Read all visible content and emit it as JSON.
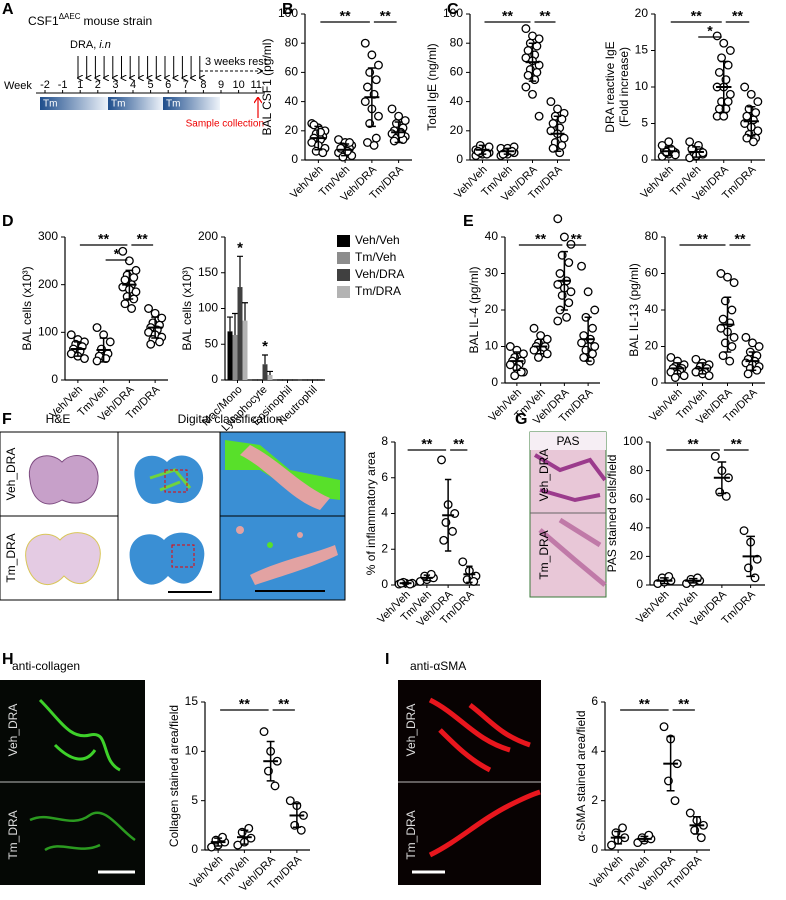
{
  "panel_letters": [
    "A",
    "B",
    "C",
    "D",
    "E",
    "F",
    "G",
    "H",
    "I"
  ],
  "timeline": {
    "title": "CSF1",
    "title_sup": "ΔAEC",
    "title_rest": "mouse strain",
    "dra": "DRA,",
    "dra_route": "i.n",
    "rest": "3 weeks rest",
    "week_label": "Week",
    "weeks": [
      -2,
      -1,
      1,
      2,
      3,
      4,
      5,
      6,
      7,
      8,
      9,
      10,
      11
    ],
    "treatment": [
      "Tm",
      "Tm",
      "Tm"
    ],
    "sample": "Sample collection"
  },
  "images": {
    "F": {
      "titles": [
        "H&E",
        "Digital classification"
      ],
      "rows": [
        "Veh_DRA",
        "Tm_DRA"
      ]
    },
    "G": {
      "title": "PAS",
      "rows": [
        "Veh_DRA",
        "Tm_DRA"
      ]
    },
    "H": {
      "title": "anti-collagen",
      "rows": [
        "Veh_DRA",
        "Tm_DRA"
      ]
    },
    "I": {
      "title": "anti-αSMA",
      "rows": [
        "Veh_DRA",
        "Tm_DRA"
      ]
    }
  },
  "chart_data": [
    {
      "type": "dotplot",
      "ylabel": "BAL CSF1 (pg/ml)",
      "categories": [
        "Veh/Veh",
        "Tm/Veh",
        "Veh/DRA",
        "Tm/DRA"
      ],
      "points": [
        [
          25,
          22,
          20,
          18,
          16,
          15,
          14,
          12,
          10,
          8,
          6,
          5,
          24,
          19
        ],
        [
          14,
          12,
          10,
          9,
          8,
          7,
          6,
          5,
          4,
          3,
          2,
          12,
          8,
          6
        ],
        [
          80,
          72,
          65,
          60,
          55,
          50,
          45,
          40,
          35,
          30,
          25,
          15,
          12,
          10
        ],
        [
          35,
          30,
          27,
          25,
          22,
          20,
          19,
          18,
          17,
          16,
          15,
          14,
          13,
          18
        ]
      ],
      "means": [
        15,
        7,
        43,
        19
      ],
      "sd": [
        8,
        4,
        20,
        7
      ],
      "ylim": [
        0,
        100
      ],
      "yticks": [
        0,
        20,
        40,
        60,
        80,
        100
      ],
      "significance": [
        {
          "groups": [
            "Veh/Veh",
            "Veh/DRA"
          ],
          "label": "**"
        },
        {
          "groups": [
            "Veh/DRA",
            "Tm/DRA"
          ],
          "label": "**"
        }
      ]
    },
    {
      "type": "dotplot",
      "ylabel": "Total IgE (ng/ml)",
      "categories": [
        "Veh/Veh",
        "Tm/Veh",
        "Veh/DRA",
        "Tm/DRA"
      ],
      "points": [
        [
          3,
          4,
          5,
          5,
          6,
          6,
          7,
          7,
          8,
          9,
          10,
          4,
          6
        ],
        [
          3,
          4,
          5,
          6,
          6,
          7,
          7,
          8,
          8,
          9,
          5,
          6,
          4
        ],
        [
          90,
          85,
          83,
          80,
          78,
          75,
          72,
          70,
          68,
          65,
          62,
          60,
          58,
          55,
          50,
          45,
          30
        ],
        [
          40,
          35,
          32,
          30,
          28,
          25,
          22,
          20,
          18,
          15,
          12,
          10,
          8,
          5
        ]
      ],
      "means": [
        7,
        6,
        67,
        18
      ],
      "sd": [
        3,
        2,
        13,
        12
      ],
      "ylim": [
        0,
        100
      ],
      "yticks": [
        0,
        20,
        40,
        60,
        80,
        100
      ],
      "significance": [
        {
          "groups": [
            "Veh/Veh",
            "Veh/DRA"
          ],
          "label": "**"
        },
        {
          "groups": [
            "Veh/DRA",
            "Tm/DRA"
          ],
          "label": "**"
        }
      ]
    },
    {
      "type": "dotplot",
      "ylabel": [
        "DRA reactive IgE",
        "(Fold increase)"
      ],
      "categories": [
        "Veh/Veh",
        "Tm/Veh",
        "Veh/DRA",
        "Tm/DRA"
      ],
      "points": [
        [
          0.5,
          0.8,
          1,
          1,
          1.2,
          1.3,
          1.5,
          2,
          2.5,
          0.7,
          1.1
        ],
        [
          0.3,
          0.5,
          0.8,
          1,
          1.2,
          1.5,
          2,
          2.5,
          0.6,
          1
        ],
        [
          17,
          16,
          15,
          14,
          13,
          12,
          11,
          10,
          10,
          9,
          8,
          8,
          7,
          7,
          6,
          6
        ],
        [
          10,
          9,
          8,
          7,
          6.5,
          6,
          5.5,
          5,
          4.5,
          4,
          3.5,
          3,
          3,
          2.5
        ]
      ],
      "means": [
        1.2,
        1.1,
        10,
        5.3
      ],
      "sd": [
        0.6,
        0.7,
        3.5,
        2
      ],
      "ylim": [
        0,
        20
      ],
      "yticks": [
        0,
        5,
        10,
        15,
        20
      ],
      "significance": [
        {
          "groups": [
            "Veh/Veh",
            "Veh/DRA"
          ],
          "label": "**"
        },
        {
          "groups": [
            "Tm/Veh",
            "Veh/DRA"
          ],
          "label": "*"
        },
        {
          "groups": [
            "Veh/DRA",
            "Tm/DRA"
          ],
          "label": "**"
        }
      ]
    },
    {
      "type": "dotplot",
      "ylabel": "BAL cells (x10³)",
      "categories": [
        "Veh/Veh",
        "Tm/Veh",
        "Veh/DRA",
        "Tm/DRA"
      ],
      "points": [
        [
          95,
          85,
          80,
          75,
          70,
          65,
          60,
          55,
          50,
          45
        ],
        [
          110,
          95,
          80,
          65,
          55,
          50,
          45,
          40
        ],
        [
          270,
          250,
          230,
          220,
          215,
          210,
          200,
          195,
          190,
          185,
          175,
          170,
          160,
          150
        ],
        [
          150,
          140,
          130,
          120,
          115,
          110,
          105,
          100,
          95,
          90,
          85,
          80,
          75
        ]
      ],
      "means": [
        65,
        63,
        200,
        110
      ],
      "sd": [
        15,
        25,
        30,
        22
      ],
      "ylim": [
        0,
        300
      ],
      "yticks": [
        0,
        100,
        200,
        300
      ],
      "significance": [
        {
          "groups": [
            "Veh/Veh",
            "Veh/DRA"
          ],
          "label": "**"
        },
        {
          "groups": [
            "Tm/Veh",
            "Veh/DRA"
          ],
          "label": "*"
        },
        {
          "groups": [
            "Veh/DRA",
            "Tm/DRA"
          ],
          "label": "**"
        }
      ]
    },
    {
      "type": "bar",
      "ylabel": "BAL cells (x10³)",
      "categories": [
        "Mac/Mono",
        "Lymphocyte",
        "Eosinophil",
        "Neutrophil"
      ],
      "series": [
        {
          "name": "Veh/Veh",
          "color": "#000000",
          "values": [
            68,
            0,
            0,
            0
          ],
          "errors": [
            20,
            0,
            0,
            0
          ]
        },
        {
          "name": "Tm/Veh",
          "color": "#8c8c8c",
          "values": [
            63,
            0,
            0,
            0
          ],
          "errors": [
            30,
            0,
            0,
            0
          ]
        },
        {
          "name": "Veh/DRA",
          "color": "#404040",
          "values": [
            130,
            22,
            0,
            0
          ],
          "errors": [
            43,
            13,
            0,
            0
          ]
        },
        {
          "name": "Tm/DRA",
          "color": "#b3b3b3",
          "values": [
            83,
            7,
            0,
            0
          ],
          "errors": [
            25,
            5,
            0,
            0
          ]
        }
      ],
      "stars": [
        {
          "category": "Mac/Mono",
          "series": "Veh/DRA",
          "label": "*"
        },
        {
          "category": "Lymphocyte",
          "series": "Veh/DRA",
          "label": "*"
        }
      ],
      "ylim": [
        0,
        200
      ],
      "yticks": [
        0,
        50,
        100,
        150,
        200
      ],
      "legend": "right"
    },
    {
      "type": "dotplot",
      "ylabel": "BAL IL-4 (pg/ml)",
      "categories": [
        "Veh/Veh",
        "Tm/Veh",
        "Veh/DRA",
        "Tm/DRA"
      ],
      "points": [
        [
          10,
          9,
          8,
          7,
          6,
          6,
          5,
          5,
          4,
          3,
          2,
          3
        ],
        [
          15,
          13,
          12,
          11,
          10,
          10,
          9,
          9,
          8,
          8,
          7
        ],
        [
          45,
          40,
          38,
          35,
          33,
          30,
          28,
          27,
          26,
          25,
          24,
          22,
          20,
          18,
          17
        ],
        [
          32,
          25,
          20,
          18,
          15,
          13,
          12,
          11,
          10,
          10,
          9,
          8,
          7,
          6
        ]
      ],
      "means": [
        6,
        10,
        28,
        12
      ],
      "sd": [
        2.5,
        2,
        8,
        6
      ],
      "ylim": [
        0,
        40
      ],
      "yticks": [
        0,
        10,
        20,
        30,
        40
      ],
      "significance": [
        {
          "groups": [
            "Veh/Veh",
            "Veh/DRA"
          ],
          "label": "**"
        },
        {
          "groups": [
            "Veh/DRA",
            "Tm/DRA"
          ],
          "label": "**"
        }
      ]
    },
    {
      "type": "dotplot",
      "ylabel": "BAL IL-13 (pg/ml)",
      "categories": [
        "Veh/Veh",
        "Tm/Veh",
        "Veh/DRA",
        "Tm/DRA"
      ],
      "points": [
        [
          14,
          12,
          10,
          9,
          8,
          8,
          7,
          6,
          5,
          4,
          3
        ],
        [
          13,
          11,
          10,
          9,
          8,
          7,
          6,
          6,
          5,
          4
        ],
        [
          60,
          58,
          55,
          45,
          40,
          35,
          33,
          30,
          28,
          25,
          22,
          20,
          15,
          12
        ],
        [
          25,
          22,
          20,
          17,
          15,
          13,
          12,
          11,
          10,
          9,
          8,
          7,
          5
        ]
      ],
      "means": [
        8,
        8,
        32,
        12
      ],
      "sd": [
        3,
        3,
        15,
        5
      ],
      "ylim": [
        0,
        80
      ],
      "yticks": [
        0,
        20,
        40,
        60,
        80
      ],
      "significance": [
        {
          "groups": [
            "Veh/Veh",
            "Veh/DRA"
          ],
          "label": "**"
        },
        {
          "groups": [
            "Veh/DRA",
            "Tm/DRA"
          ],
          "label": "**"
        }
      ]
    },
    {
      "type": "dotplot",
      "ylabel": "% of inflammatory area",
      "categories": [
        "Veh/Veh",
        "Tm/Veh",
        "Veh/DRA",
        "Tm/DRA"
      ],
      "points": [
        [
          0.05,
          0.1,
          0.1,
          0.15,
          0.05,
          0.1
        ],
        [
          0.2,
          0.3,
          0.4,
          0.5,
          0.6
        ],
        [
          7,
          4.5,
          4,
          3.5,
          3,
          2.5
        ],
        [
          1.3,
          0.8,
          0.5,
          0.3,
          0.2
        ]
      ],
      "means": [
        0.1,
        0.4,
        3.9,
        0.6
      ],
      "sd": [
        0.05,
        0.15,
        2,
        0.45
      ],
      "ylim": [
        0,
        8
      ],
      "yticks": [
        0,
        2,
        4,
        6,
        8
      ],
      "significance": [
        {
          "groups": [
            "Veh/Veh",
            "Veh/DRA"
          ],
          "label": "**"
        },
        {
          "groups": [
            "Veh/DRA",
            "Tm/DRA"
          ],
          "label": "**"
        }
      ]
    },
    {
      "type": "dotplot",
      "ylabel": "PAS stained cells/field",
      "categories": [
        "Veh/Veh",
        "Tm/Veh",
        "Veh/DRA",
        "Tm/DRA"
      ],
      "points": [
        [
          1,
          2,
          3,
          5,
          6
        ],
        [
          1,
          2,
          3,
          4,
          5
        ],
        [
          90,
          80,
          75,
          65,
          62
        ],
        [
          38,
          30,
          18,
          12,
          5
        ]
      ],
      "means": [
        3,
        3,
        75,
        20
      ],
      "sd": [
        2,
        1.5,
        11,
        14
      ],
      "ylim": [
        0,
        100
      ],
      "yticks": [
        0,
        20,
        40,
        60,
        80,
        100
      ],
      "significance": [
        {
          "groups": [
            "Veh/Veh",
            "Veh/DRA"
          ],
          "label": "**"
        },
        {
          "groups": [
            "Veh/DRA",
            "Tm/DRA"
          ],
          "label": "**"
        }
      ]
    },
    {
      "type": "dotplot",
      "ylabel": "Collagen stained area/field",
      "categories": [
        "Veh/Veh",
        "Tm/Veh",
        "Veh/DRA",
        "Tm/DRA"
      ],
      "points": [
        [
          0.3,
          0.5,
          0.8,
          1,
          1.3
        ],
        [
          0.5,
          0.8,
          1.2,
          1.8,
          2.2
        ],
        [
          12,
          10,
          9,
          8,
          6.5
        ],
        [
          5,
          4.5,
          3.5,
          2.5,
          2
        ]
      ],
      "means": [
        0.8,
        1.3,
        9,
        3.5
      ],
      "sd": [
        0.4,
        0.7,
        2,
        1.2
      ],
      "ylim": [
        0,
        15
      ],
      "yticks": [
        0,
        5,
        10,
        15
      ],
      "significance": [
        {
          "groups": [
            "Veh/Veh",
            "Veh/DRA"
          ],
          "label": "**"
        },
        {
          "groups": [
            "Veh/DRA",
            "Tm/DRA"
          ],
          "label": "**"
        }
      ]
    },
    {
      "type": "dotplot",
      "ylabel": "α-SMA stained area/field",
      "categories": [
        "Veh/Veh",
        "Tm/Veh",
        "Veh/DRA",
        "Tm/DRA"
      ],
      "points": [
        [
          0.2,
          0.4,
          0.5,
          0.7,
          0.9
        ],
        [
          0.3,
          0.4,
          0.45,
          0.5,
          0.6
        ],
        [
          5,
          4.5,
          3.5,
          2.8,
          2
        ],
        [
          1.5,
          1.2,
          1,
          0.8,
          0.5
        ]
      ],
      "means": [
        0.5,
        0.45,
        3.5,
        1
      ],
      "sd": [
        0.25,
        0.1,
        1.1,
        0.35
      ],
      "ylim": [
        0,
        6
      ],
      "yticks": [
        0,
        2,
        4,
        6
      ],
      "significance": [
        {
          "groups": [
            "Veh/Veh",
            "Veh/DRA"
          ],
          "label": "**"
        },
        {
          "groups": [
            "Veh/DRA",
            "Tm/DRA"
          ],
          "label": "**"
        }
      ]
    }
  ]
}
